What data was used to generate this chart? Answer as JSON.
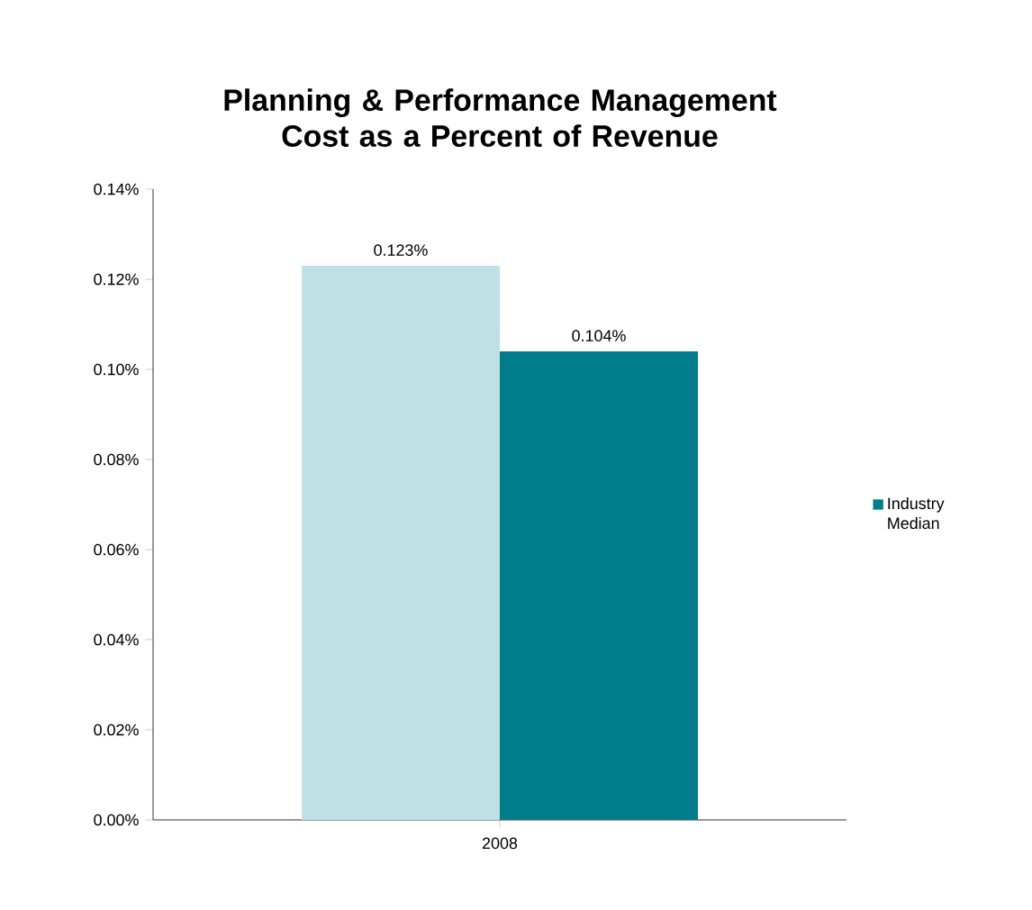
{
  "chart_data": {
    "type": "bar",
    "title": "Planning & Performance Management Cost as a Percent of Revenue",
    "categories": [
      "2008"
    ],
    "series": [
      {
        "color": "#bfe1e5",
        "values": [
          0.123
        ],
        "value_labels": [
          "0.123%"
        ]
      },
      {
        "name": "Industry Median",
        "color": "#007c8a",
        "values": [
          0.104
        ],
        "value_labels": [
          "0.104%"
        ]
      }
    ],
    "ylim": [
      0,
      0.14
    ],
    "yticks": [
      {
        "value": 0,
        "label": "0.00%"
      },
      {
        "value": 0.02,
        "label": "0.02%"
      },
      {
        "value": 0.04,
        "label": "0.04%"
      },
      {
        "value": 0.06,
        "label": "0.06%"
      },
      {
        "value": 0.08,
        "label": "0.08%"
      },
      {
        "value": 0.1,
        "label": "0.10%"
      },
      {
        "value": 0.12,
        "label": "0.12%"
      },
      {
        "value": 0.14,
        "label": "0.14%"
      }
    ],
    "grid": false,
    "legend": "right"
  }
}
